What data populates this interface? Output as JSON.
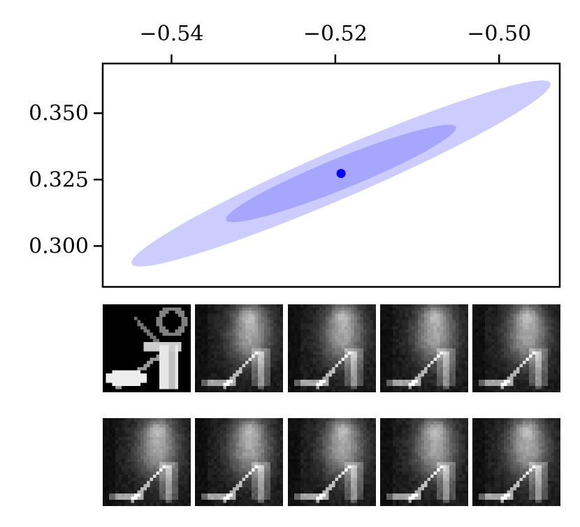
{
  "chart_data": {
    "type": "scatter",
    "title": "",
    "xlabel": "",
    "ylabel": "",
    "xlim": [
      -0.5484,
      -0.4926
    ],
    "ylim": [
      0.2846,
      0.3687
    ],
    "xticks": [
      -0.54,
      -0.52,
      -0.5
    ],
    "xtick_labels": [
      "−0.54",
      "−0.52",
      "−0.50"
    ],
    "xaxis_position": "top",
    "yticks": [
      0.3,
      0.325,
      0.35
    ],
    "ytick_labels": [
      "0.300",
      "0.325",
      "0.350"
    ],
    "grid": false,
    "legend": "none",
    "point": {
      "x": -0.5193,
      "y": 0.3273,
      "color": "#0000ff"
    },
    "ellipses": [
      {
        "level": "outer",
        "center": [
          -0.5193,
          0.3273
        ],
        "x_extent": [
          -0.5449,
          -0.4935
        ],
        "y_extent": [
          0.2928,
          0.3612
        ],
        "color": "#ccccff"
      },
      {
        "level": "inner",
        "center": [
          -0.5193,
          0.3273
        ],
        "x_extent": [
          -0.5347,
          -0.5064
        ],
        "y_extent": [
          0.3098,
          0.3451
        ],
        "color": "#a6a6ff"
      }
    ],
    "image_grid": {
      "rows": 2,
      "cols": 5,
      "colormap": "gray",
      "cells": [
        {
          "kind": "original",
          "label": ""
        },
        {
          "kind": "reconstruction",
          "label": ""
        },
        {
          "kind": "reconstruction",
          "label": ""
        },
        {
          "kind": "reconstruction",
          "label": ""
        },
        {
          "kind": "reconstruction",
          "label": ""
        },
        {
          "kind": "reconstruction",
          "label": ""
        },
        {
          "kind": "reconstruction",
          "label": ""
        },
        {
          "kind": "reconstruction",
          "label": ""
        },
        {
          "kind": "reconstruction",
          "label": ""
        },
        {
          "kind": "reconstruction",
          "label": ""
        }
      ]
    }
  }
}
